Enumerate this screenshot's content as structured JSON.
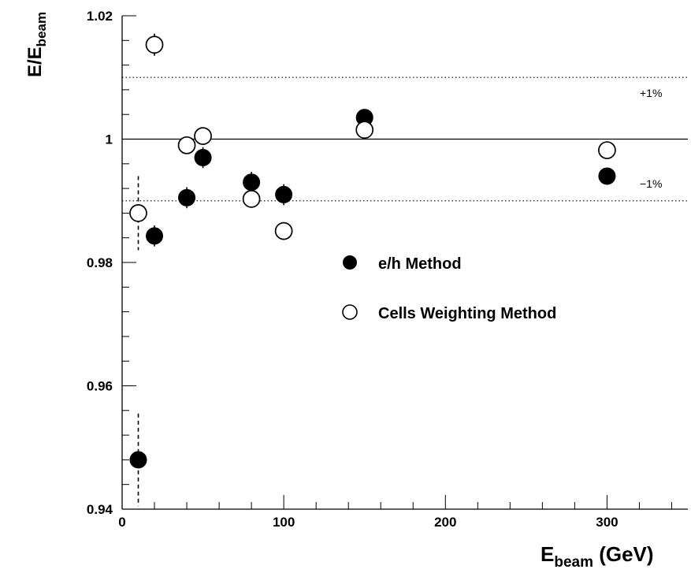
{
  "chart_data": {
    "type": "scatter",
    "xlabel": {
      "main": "E",
      "sub": "beam",
      "unit": " (GeV)"
    },
    "ylabel": {
      "main": "E/E",
      "sub": "beam"
    },
    "xlim": [
      0,
      350
    ],
    "ylim": [
      0.94,
      1.02
    ],
    "x_ticks": [
      0,
      100,
      200,
      300
    ],
    "x_tick_labels": [
      "0",
      "100",
      "200",
      "300"
    ],
    "y_ticks": [
      0.94,
      0.96,
      0.98,
      1.0,
      1.02
    ],
    "y_tick_labels": [
      "0.94",
      "0.96",
      "0.98",
      "1",
      "1.02"
    ],
    "reference_lines": [
      {
        "y": 1.01,
        "style": "dotted",
        "label": "+1%"
      },
      {
        "y": 1.0,
        "style": "solid",
        "label": ""
      },
      {
        "y": 0.99,
        "style": "dotted",
        "label": "−1%"
      }
    ],
    "series": [
      {
        "name": "e/h Method",
        "marker": "filled-circle",
        "x": [
          10,
          20,
          40,
          50,
          80,
          100,
          150,
          300
        ],
        "y": [
          0.948,
          0.9843,
          0.9905,
          0.997,
          0.993,
          0.991,
          1.0035,
          0.994
        ],
        "err": [
          0.0075,
          0.0017,
          0.0017,
          0.0017,
          0.0017,
          0.0017,
          0.0008,
          0.0005
        ],
        "err_style": [
          "dashed",
          "solid",
          "solid",
          "solid",
          "solid",
          "solid",
          "solid",
          "solid"
        ]
      },
      {
        "name": "Cells Weighting Method",
        "marker": "open-circle",
        "x": [
          10,
          20,
          40,
          50,
          80,
          100,
          150,
          300
        ],
        "y": [
          0.988,
          1.0153,
          0.999,
          1.0005,
          0.9903,
          0.9851,
          1.0015,
          0.9982
        ],
        "err": [
          0.006,
          0.0018,
          0.0,
          0.0,
          0.0,
          0.0,
          0.0,
          0.0
        ],
        "err_style": [
          "dashed",
          "solid",
          "solid",
          "solid",
          "solid",
          "solid",
          "solid",
          "solid"
        ]
      }
    ],
    "legend_position": "center-right",
    "grid": false
  }
}
